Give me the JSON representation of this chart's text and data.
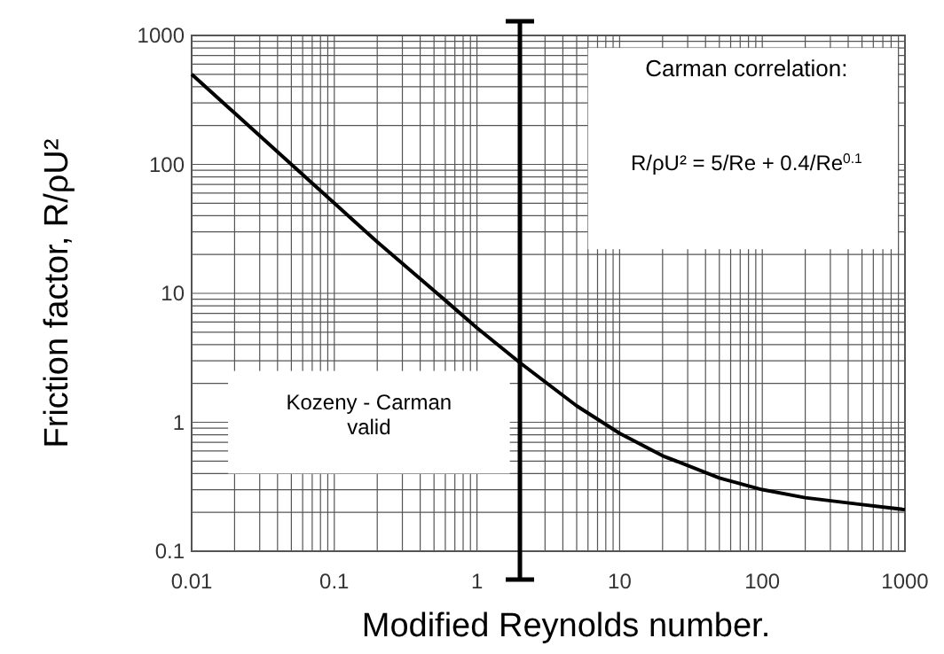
{
  "chart_data": {
    "type": "line",
    "xlabel": "Modified Reynolds number.",
    "ylabel": "Friction factor, R/ρU²",
    "x": [
      0.01,
      0.02,
      0.05,
      0.1,
      0.2,
      0.5,
      1,
      2,
      5,
      10,
      20,
      50,
      100,
      200,
      500,
      1000
    ],
    "series": [
      {
        "color": "#000000",
        "values": [
          500,
          250,
          100,
          50,
          25,
          10.5,
          5.4,
          2.9,
          1.34,
          0.82,
          0.55,
          0.37,
          0.3,
          0.26,
          0.23,
          0.21
        ]
      }
    ],
    "xlim": [
      0.01,
      1000
    ],
    "ylim": [
      0.1,
      1000
    ],
    "log": "xy",
    "xticks": [
      0.01,
      0.1,
      1,
      10,
      100,
      1000
    ],
    "yticks": [
      0.1,
      1,
      10,
      100,
      1000
    ],
    "grid": true,
    "marker": "none",
    "line_style": "solid",
    "ref_lines": [
      {
        "axis": "x",
        "value": 2,
        "color": "#000000"
      }
    ],
    "annotations": [
      "Carman correlation:",
      "R/ρU² = 5/Re + 0.4/Re$^{0.1}$",
      "Kozeny - Carman valid"
    ]
  }
}
